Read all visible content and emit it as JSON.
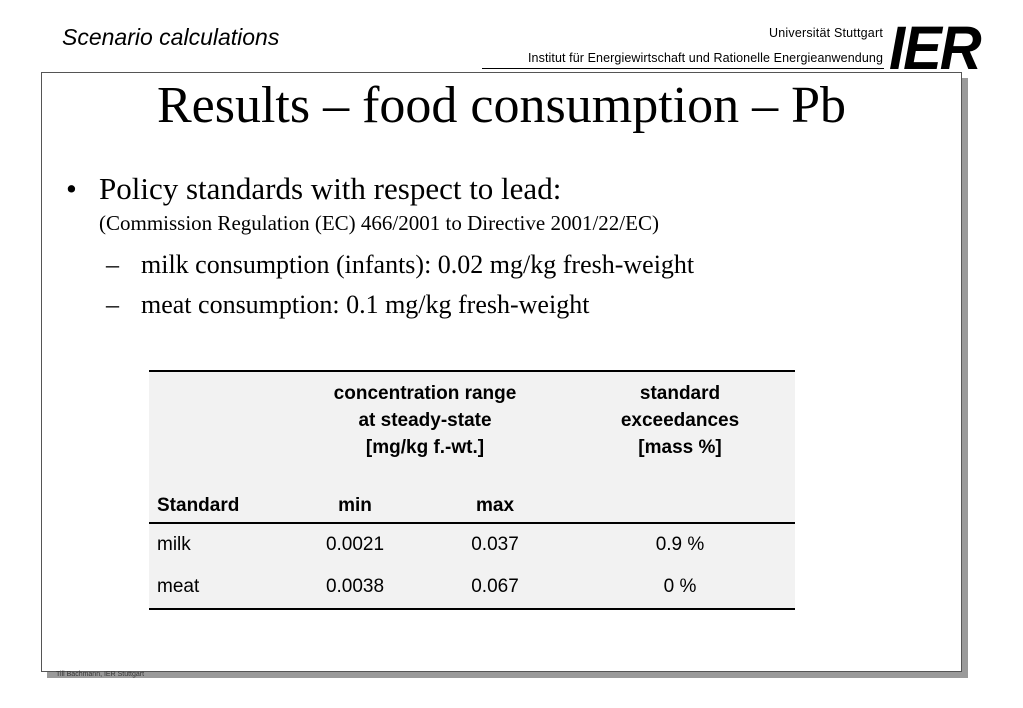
{
  "header": {
    "section_title": "Scenario calculations",
    "university": "Universität Stuttgart",
    "institute": "Institut für Energiewirtschaft und Rationelle Energieanwendung",
    "logo_text": "IER"
  },
  "slide": {
    "title": "Results – food consumption – Pb",
    "bullet": {
      "mark": "•",
      "text": "Policy standards with respect to lead:",
      "note": "(Commission Regulation (EC) 466/2001 to Directive 2001/22/EC)",
      "sub_mark": "–",
      "sub_items": [
        "milk consumption (infants): 0.02 mg/kg fresh-weight",
        "meat consumption: 0.1 mg/kg fresh-weight"
      ]
    }
  },
  "table": {
    "header_group_concentration": [
      "concentration range",
      "at steady-state",
      "[mg/kg f.-wt.]"
    ],
    "header_group_exceedance": [
      "standard",
      "exceedances",
      "[mass %]"
    ],
    "col_standard": "Standard",
    "col_min": "min",
    "col_max": "max",
    "rows": [
      {
        "standard": "milk",
        "min": "0.0021",
        "max": "0.037",
        "exceedance": "0.9 %"
      },
      {
        "standard": "meat",
        "min": "0.0038",
        "max": "0.067",
        "exceedance": "0 %"
      }
    ]
  },
  "footer": {
    "credit": "Till Bachmann, IER Stuttgart"
  }
}
